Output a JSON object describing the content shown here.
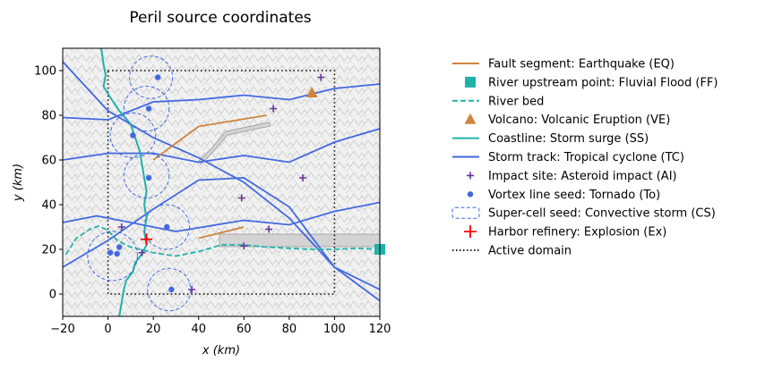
{
  "chart_data": {
    "type": "scatter",
    "title": "Peril source coordinates",
    "xlabel": "x (km)",
    "ylabel": "y (km)",
    "xlim": [
      -20,
      120
    ],
    "ylim": [
      -10,
      110
    ],
    "xticks": [
      -20,
      0,
      20,
      40,
      60,
      80,
      100,
      120
    ],
    "yticks": [
      0,
      20,
      40,
      60,
      80,
      100
    ],
    "grid": false,
    "legend_position": "right",
    "background": "grey hillshade terrain",
    "legend": [
      {
        "label": "Fault segment: Earthquake (EQ)",
        "marker": "line",
        "color": "#cd853f"
      },
      {
        "label": "River upstream point: Fluvial Flood (FF)",
        "marker": "square",
        "color": "#20b2aa"
      },
      {
        "label": "River bed",
        "marker": "dashed-line",
        "color": "#20b2aa"
      },
      {
        "label": "Volcano: Volcanic Eruption (VE)",
        "marker": "triangle",
        "color": "#cd853f"
      },
      {
        "label": "Coastline: Storm surge (SS)",
        "marker": "line",
        "color": "#20b2aa"
      },
      {
        "label": "Storm track: Tropical cyclone (TC)",
        "marker": "line",
        "color": "#4169e1"
      },
      {
        "label": "Impact site: Asteroid impact (AI)",
        "marker": "plus",
        "color": "#663399"
      },
      {
        "label": "Vortex line seed: Tornado (To)",
        "marker": "dot",
        "color": "#4169e1"
      },
      {
        "label": "Super-cell seed: Convective storm (CS)",
        "marker": "dashed-box",
        "color": "#4169e1"
      },
      {
        "label": "Harbor refinery: Explosion (Ex)",
        "marker": "big-plus",
        "color": "#ff0000"
      },
      {
        "label": "Active domain",
        "marker": "dotted-line",
        "color": "#000000"
      }
    ],
    "series": [
      {
        "name": "Fault segment: Earthquake (EQ)",
        "kind": "segments",
        "segments": [
          [
            [
              20,
              60
            ],
            [
              40,
              75
            ],
            [
              70,
              80
            ]
          ],
          [
            [
              40,
              25
            ],
            [
              60,
              30
            ]
          ]
        ]
      },
      {
        "name": "River upstream point: Fluvial Flood (FF)",
        "kind": "points",
        "points": [
          [
            120,
            20
          ]
        ]
      },
      {
        "name": "River bed",
        "kind": "polyline",
        "points": [
          [
            120,
            20
          ],
          [
            110,
            20.5
          ],
          [
            100,
            20
          ],
          [
            90,
            20
          ],
          [
            80,
            20.5
          ],
          [
            70,
            21
          ],
          [
            60,
            22
          ],
          [
            50,
            22
          ],
          [
            40,
            19
          ],
          [
            30,
            17
          ],
          [
            20,
            18.5
          ],
          [
            10,
            21
          ],
          [
            4,
            24
          ],
          [
            0,
            28.5
          ],
          [
            -4,
            30.5
          ],
          [
            -8,
            29
          ],
          [
            -14,
            25
          ],
          [
            -19,
            17
          ]
        ]
      },
      {
        "name": "Volcano: Volcanic Eruption (VE)",
        "kind": "points",
        "points": [
          [
            90,
            90
          ]
        ]
      },
      {
        "name": "Coastline: Storm surge (SS)",
        "kind": "polyline",
        "points": [
          [
            -3,
            110
          ],
          [
            -2,
            103
          ],
          [
            -1,
            98
          ],
          [
            -2,
            93
          ],
          [
            1,
            88
          ],
          [
            5,
            82
          ],
          [
            10,
            76
          ],
          [
            12,
            70
          ],
          [
            14,
            64
          ],
          [
            15,
            58
          ],
          [
            16,
            52
          ],
          [
            17,
            46
          ],
          [
            16,
            40
          ],
          [
            17,
            34
          ],
          [
            16,
            28
          ],
          [
            17,
            22
          ],
          [
            15,
            18
          ],
          [
            12,
            14
          ],
          [
            11,
            10
          ],
          [
            8,
            6
          ],
          [
            7,
            2
          ],
          [
            6,
            -4
          ],
          [
            5,
            -10
          ]
        ]
      },
      {
        "name": "Storm track: Tropical cyclone (TC)",
        "kind": "tracks",
        "tracks": [
          [
            [
              -20,
              104
            ],
            [
              0,
              82
            ],
            [
              20,
              70
            ],
            [
              40,
              61
            ],
            [
              60,
              50
            ],
            [
              80,
              34
            ],
            [
              100,
              12
            ],
            [
              120,
              2
            ]
          ],
          [
            [
              -20,
              79
            ],
            [
              0,
              78
            ],
            [
              20,
              86
            ],
            [
              40,
              87
            ],
            [
              60,
              89
            ],
            [
              80,
              87
            ],
            [
              100,
              92
            ],
            [
              120,
              94
            ]
          ],
          [
            [
              -20,
              60
            ],
            [
              0,
              63
            ],
            [
              20,
              63
            ],
            [
              40,
              59
            ],
            [
              60,
              62
            ],
            [
              80,
              59
            ],
            [
              100,
              68
            ],
            [
              120,
              74
            ]
          ],
          [
            [
              -20,
              32
            ],
            [
              -5,
              35
            ],
            [
              10,
              32
            ],
            [
              30,
              28
            ],
            [
              60,
              33
            ],
            [
              80,
              31
            ],
            [
              100,
              37
            ],
            [
              120,
              41
            ]
          ],
          [
            [
              -20,
              12
            ],
            [
              0,
              24
            ],
            [
              20,
              38
            ],
            [
              40,
              51
            ],
            [
              60,
              52
            ],
            [
              80,
              39
            ],
            [
              100,
              12
            ],
            [
              120,
              -3
            ]
          ]
        ]
      },
      {
        "name": "Impact site: Asteroid impact (AI)",
        "kind": "points",
        "points": [
          [
            94,
            97
          ],
          [
            73,
            83
          ],
          [
            86,
            52
          ],
          [
            59,
            43
          ],
          [
            71,
            29
          ],
          [
            6,
            30
          ],
          [
            37,
            2
          ],
          [
            60,
            21.5
          ],
          [
            15,
            18.5
          ]
        ]
      },
      {
        "name": "Vortex line seed: Tornado (To)",
        "kind": "points",
        "points": [
          [
            22,
            97
          ],
          [
            18,
            83
          ],
          [
            11,
            71
          ],
          [
            18,
            52
          ],
          [
            26,
            30
          ],
          [
            5,
            21
          ],
          [
            1,
            18.5
          ],
          [
            4,
            18
          ],
          [
            28,
            2
          ]
        ]
      },
      {
        "name": "Super-cell seed: Convective storm (CS)",
        "kind": "circles",
        "circles": [
          {
            "x": 19,
            "y": 97,
            "r": 9.5
          },
          {
            "x": 17,
            "y": 83,
            "r": 10
          },
          {
            "x": 11,
            "y": 71,
            "r": 10
          },
          {
            "x": 17,
            "y": 53,
            "r": 10
          },
          {
            "x": 26,
            "y": 30,
            "r": 10
          },
          {
            "x": 2,
            "y": 17,
            "r": 11
          },
          {
            "x": 27,
            "y": 2,
            "r": 9.5
          }
        ]
      },
      {
        "name": "Harbor refinery: Explosion (Ex)",
        "kind": "points",
        "points": [
          [
            17,
            24.5
          ]
        ]
      },
      {
        "name": "Active domain",
        "kind": "rectangle",
        "x": [
          0,
          100
        ],
        "y": [
          0,
          100
        ]
      }
    ]
  }
}
